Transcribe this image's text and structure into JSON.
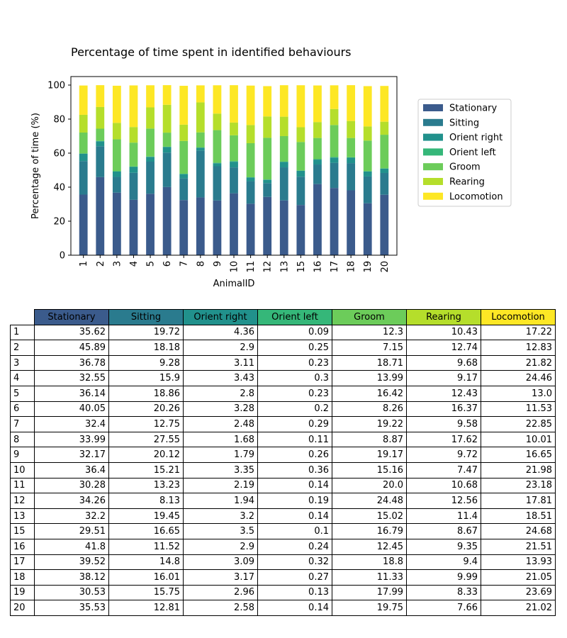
{
  "chart_data": {
    "type": "bar",
    "stacked": true,
    "title": "Percentage of time spent in identified behaviours",
    "xlabel": "AnimalID",
    "ylabel": "Percentage of time (%)",
    "ylim": [
      0,
      105
    ],
    "yticks": [
      0,
      20,
      40,
      60,
      80,
      100
    ],
    "grid": false,
    "legend_position": "right",
    "categories": [
      "1",
      "2",
      "3",
      "4",
      "5",
      "6",
      "7",
      "8",
      "9",
      "10",
      "11",
      "12",
      "13",
      "15",
      "16",
      "17",
      "18",
      "19",
      "20"
    ],
    "series": [
      {
        "name": "Stationary",
        "color": "#3b5b8c",
        "values": [
          35.62,
          45.89,
          36.78,
          32.55,
          36.14,
          40.05,
          32.4,
          33.99,
          32.17,
          36.4,
          30.28,
          34.26,
          32.2,
          29.51,
          41.8,
          39.52,
          38.12,
          30.53,
          35.53
        ]
      },
      {
        "name": "Sitting",
        "color": "#2a7b8e",
        "values": [
          19.72,
          18.18,
          9.28,
          15.9,
          18.86,
          20.26,
          12.75,
          27.55,
          20.12,
          15.21,
          13.23,
          8.13,
          19.45,
          16.65,
          11.52,
          14.8,
          16.01,
          15.75,
          12.81
        ]
      },
      {
        "name": "Orient right",
        "color": "#21918c",
        "values": [
          4.36,
          2.9,
          3.11,
          3.43,
          2.8,
          3.28,
          2.48,
          1.68,
          1.79,
          3.35,
          2.19,
          1.94,
          3.2,
          3.5,
          2.9,
          3.09,
          3.17,
          2.96,
          2.58
        ]
      },
      {
        "name": "Orient left",
        "color": "#35b779",
        "values": [
          0.09,
          0.25,
          0.23,
          0.3,
          0.23,
          0.2,
          0.29,
          0.11,
          0.26,
          0.36,
          0.14,
          0.19,
          0.14,
          0.1,
          0.24,
          0.32,
          0.27,
          0.13,
          0.14
        ]
      },
      {
        "name": "Groom",
        "color": "#6ccc5a",
        "values": [
          12.3,
          7.15,
          18.71,
          13.99,
          16.42,
          8.26,
          19.22,
          8.87,
          19.17,
          15.16,
          20.0,
          24.48,
          15.02,
          16.79,
          12.45,
          18.8,
          11.33,
          17.99,
          19.75
        ]
      },
      {
        "name": "Rearing",
        "color": "#b5de2b",
        "values": [
          10.43,
          12.74,
          9.68,
          9.17,
          12.43,
          16.37,
          9.58,
          17.62,
          9.72,
          7.47,
          10.68,
          12.56,
          11.4,
          8.67,
          9.35,
          9.4,
          9.99,
          8.33,
          7.66
        ]
      },
      {
        "name": "Locomotion",
        "color": "#fde725",
        "values": [
          17.22,
          12.83,
          21.82,
          24.46,
          13.0,
          11.53,
          22.85,
          10.01,
          16.65,
          21.98,
          23.18,
          17.81,
          18.51,
          24.68,
          21.51,
          13.93,
          21.05,
          23.69,
          21.02
        ]
      }
    ]
  },
  "table": {
    "headers": [
      "Stationary",
      "Sitting",
      "Orient right",
      "Orient left",
      "Groom",
      "Rearing",
      "Locomotion"
    ],
    "header_colors": [
      "#3b5b8c",
      "#2a7b8e",
      "#21918c",
      "#35b779",
      "#6ccc5a",
      "#b5de2b",
      "#fde725"
    ],
    "rows": [
      {
        "id": "1",
        "cells": [
          "35.62",
          "19.72",
          "4.36",
          "0.09",
          "12.3",
          "10.43",
          "17.22"
        ]
      },
      {
        "id": "2",
        "cells": [
          "45.89",
          "18.18",
          "2.9",
          "0.25",
          "7.15",
          "12.74",
          "12.83"
        ]
      },
      {
        "id": "3",
        "cells": [
          "36.78",
          "9.28",
          "3.11",
          "0.23",
          "18.71",
          "9.68",
          "21.82"
        ]
      },
      {
        "id": "4",
        "cells": [
          "32.55",
          "15.9",
          "3.43",
          "0.3",
          "13.99",
          "9.17",
          "24.46"
        ]
      },
      {
        "id": "5",
        "cells": [
          "36.14",
          "18.86",
          "2.8",
          "0.23",
          "16.42",
          "12.43",
          "13.0"
        ]
      },
      {
        "id": "6",
        "cells": [
          "40.05",
          "20.26",
          "3.28",
          "0.2",
          "8.26",
          "16.37",
          "11.53"
        ]
      },
      {
        "id": "7",
        "cells": [
          "32.4",
          "12.75",
          "2.48",
          "0.29",
          "19.22",
          "9.58",
          "22.85"
        ]
      },
      {
        "id": "8",
        "cells": [
          "33.99",
          "27.55",
          "1.68",
          "0.11",
          "8.87",
          "17.62",
          "10.01"
        ]
      },
      {
        "id": "9",
        "cells": [
          "32.17",
          "20.12",
          "1.79",
          "0.26",
          "19.17",
          "9.72",
          "16.65"
        ]
      },
      {
        "id": "10",
        "cells": [
          "36.4",
          "15.21",
          "3.35",
          "0.36",
          "15.16",
          "7.47",
          "21.98"
        ]
      },
      {
        "id": "11",
        "cells": [
          "30.28",
          "13.23",
          "2.19",
          "0.14",
          "20.0",
          "10.68",
          "23.18"
        ]
      },
      {
        "id": "12",
        "cells": [
          "34.26",
          "8.13",
          "1.94",
          "0.19",
          "24.48",
          "12.56",
          "17.81"
        ]
      },
      {
        "id": "13",
        "cells": [
          "32.2",
          "19.45",
          "3.2",
          "0.14",
          "15.02",
          "11.4",
          "18.51"
        ]
      },
      {
        "id": "15",
        "cells": [
          "29.51",
          "16.65",
          "3.5",
          "0.1",
          "16.79",
          "8.67",
          "24.68"
        ]
      },
      {
        "id": "16",
        "cells": [
          "41.8",
          "11.52",
          "2.9",
          "0.24",
          "12.45",
          "9.35",
          "21.51"
        ]
      },
      {
        "id": "17",
        "cells": [
          "39.52",
          "14.8",
          "3.09",
          "0.32",
          "18.8",
          "9.4",
          "13.93"
        ]
      },
      {
        "id": "18",
        "cells": [
          "38.12",
          "16.01",
          "3.17",
          "0.27",
          "11.33",
          "9.99",
          "21.05"
        ]
      },
      {
        "id": "19",
        "cells": [
          "30.53",
          "15.75",
          "2.96",
          "0.13",
          "17.99",
          "8.33",
          "23.69"
        ]
      },
      {
        "id": "20",
        "cells": [
          "35.53",
          "12.81",
          "2.58",
          "0.14",
          "19.75",
          "7.66",
          "21.02"
        ]
      }
    ]
  }
}
